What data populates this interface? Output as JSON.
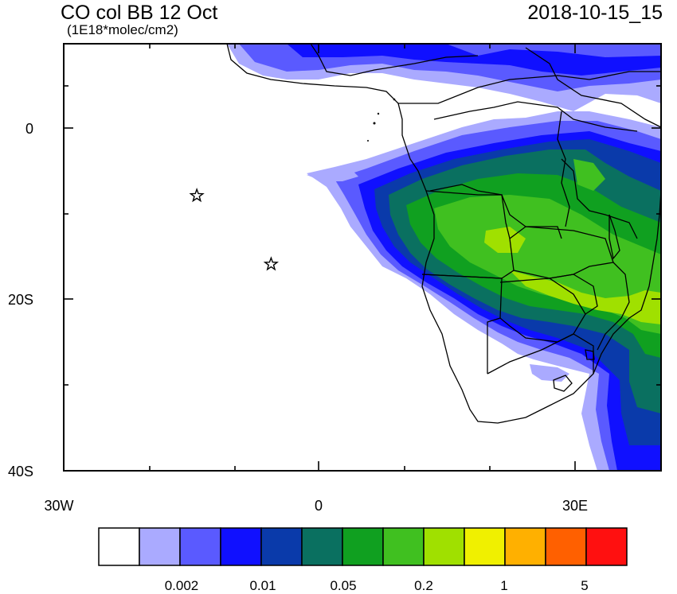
{
  "title": "CO col BB 12 Oct",
  "units": "(1E18*molec/cm2)",
  "timestamp": "2018-10-15_15",
  "axes": {
    "y_ticks": [
      "0",
      "20S",
      "40S"
    ],
    "x_ticks": [
      "30W",
      "0",
      "30E"
    ]
  },
  "colorbar": {
    "colors": [
      "#ffffff",
      "#aaaaff",
      "#5a5aff",
      "#1010ff",
      "#0a3aaa",
      "#0a7060",
      "#10a020",
      "#40c020",
      "#a0e000",
      "#f0f000",
      "#ffb000",
      "#ff6000",
      "#ff1010"
    ],
    "labels": [
      "0.002",
      "0.01",
      "0.05",
      "0.2",
      "1",
      "5"
    ]
  },
  "markers": [
    {
      "name": "star-marker-1",
      "lon": -14.4,
      "lat": -7.9
    },
    {
      "name": "star-marker-2",
      "lon": -5.7,
      "lat": -15.9
    }
  ]
}
